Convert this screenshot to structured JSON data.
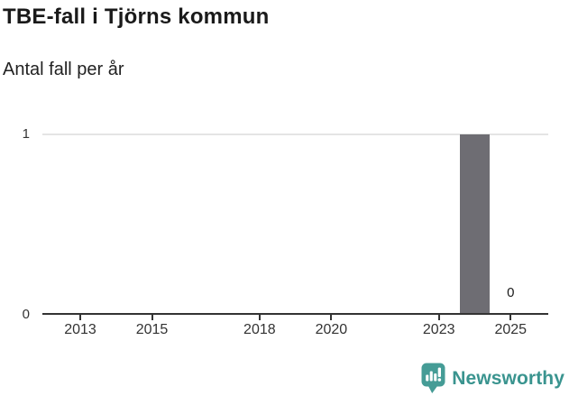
{
  "header": {
    "title": "TBE-fall i Tjörns kommun",
    "subtitle": "Antal fall per år"
  },
  "chart_data": {
    "type": "bar",
    "title": "TBE-fall i Tjörns kommun",
    "subtitle": "Antal fall per år",
    "xlabel": "",
    "ylabel": "Antal fall per år",
    "ylim": [
      0,
      1
    ],
    "y_ticks": [
      "0",
      "1"
    ],
    "x_tick_labels": [
      "2013",
      "2015",
      "2018",
      "2020",
      "2023",
      "2025"
    ],
    "x_tick_years": [
      2013,
      2015,
      2018,
      2020,
      2023,
      2025
    ],
    "bars": [
      {
        "year": 2024,
        "value": 1
      }
    ],
    "value_labels": [
      {
        "year": 2025,
        "value": 0,
        "text": "0"
      }
    ],
    "bar_color": "#6e6d73",
    "gridline_color": "#e4e4e4",
    "axis_color": "#333333",
    "grid": "single horizontal gridline at y=1",
    "legend": "none"
  },
  "footer": {
    "brand": "Newsworthy",
    "logo_icon": "newsworthy-speech-bubble-bar-chart-icon",
    "brand_color": "#3a948f",
    "icon_color": "#459c96"
  }
}
